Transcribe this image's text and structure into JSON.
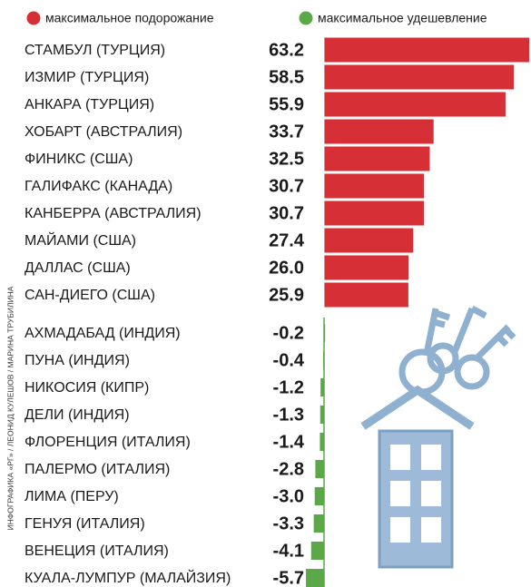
{
  "chart_data": {
    "type": "bar",
    "orientation": "horizontal",
    "credit": "ИНФОГРАФИКА «РГ» / ЛЕОНИД КУЛЕШОВ / МАРИНА ТРУБИЛИНА",
    "categories": [
      "СТАМБУЛ (ТУРЦИЯ)",
      "ИЗМИР (ТУРЦИЯ)",
      "АНКАРА (ТУРЦИЯ)",
      "ХОБАРТ (АВСТРАЛИЯ)",
      "ФИНИКС (США)",
      "ГАЛИФАКС (КАНАДА)",
      "КАНБЕРРА (АВСТРАЛИЯ)",
      "МАЙАМИ (США)",
      "ДАЛЛАС (США)",
      "САН-ДИЕГО (США)",
      "АХМАДАБАД (ИНДИЯ)",
      "ПУНА (ИНДИЯ)",
      "НИКОСИЯ (КИПР)",
      "ДЕЛИ (ИНДИЯ)",
      "ФЛОРЕНЦИЯ (ИТАЛИЯ)",
      "ПАЛЕРМО (ИТАЛИЯ)",
      "ЛИМА (ПЕРУ)",
      "ГЕНУЯ (ИТАЛИЯ)",
      "ВЕНЕЦИЯ (ИТАЛИЯ)",
      "КУАЛА-ЛУМПУР (МАЛАЙЗИЯ)"
    ],
    "series": [
      {
        "name": "максимальное подорожание",
        "color": "#d62f36",
        "values": [
          63.2,
          58.5,
          55.9,
          33.7,
          32.5,
          30.7,
          30.7,
          27.4,
          26.0,
          25.9,
          null,
          null,
          null,
          null,
          null,
          null,
          null,
          null,
          null,
          null
        ],
        "value_labels": [
          "63.2",
          "58.5",
          "55.9",
          "33.7",
          "32.5",
          "30.7",
          "30.7",
          "27.4",
          "26.0",
          "25.9",
          null,
          null,
          null,
          null,
          null,
          null,
          null,
          null,
          null,
          null
        ]
      },
      {
        "name": "максимальное удешевление",
        "color": "#5aa847",
        "values": [
          null,
          null,
          null,
          null,
          null,
          null,
          null,
          null,
          null,
          null,
          -0.2,
          -0.4,
          -1.2,
          -1.3,
          -1.4,
          -2.8,
          -3.0,
          -3.3,
          -4.1,
          -5.7
        ],
        "value_labels": [
          null,
          null,
          null,
          null,
          null,
          null,
          null,
          null,
          null,
          null,
          "-0.2",
          "-0.4",
          "-1.2",
          "-1.3",
          "-1.4",
          "-2.8",
          "-3.0",
          "-3.3",
          "-4.1",
          "-5.7"
        ]
      }
    ],
    "xlim": [
      -6,
      63.2
    ],
    "legend": "top"
  }
}
